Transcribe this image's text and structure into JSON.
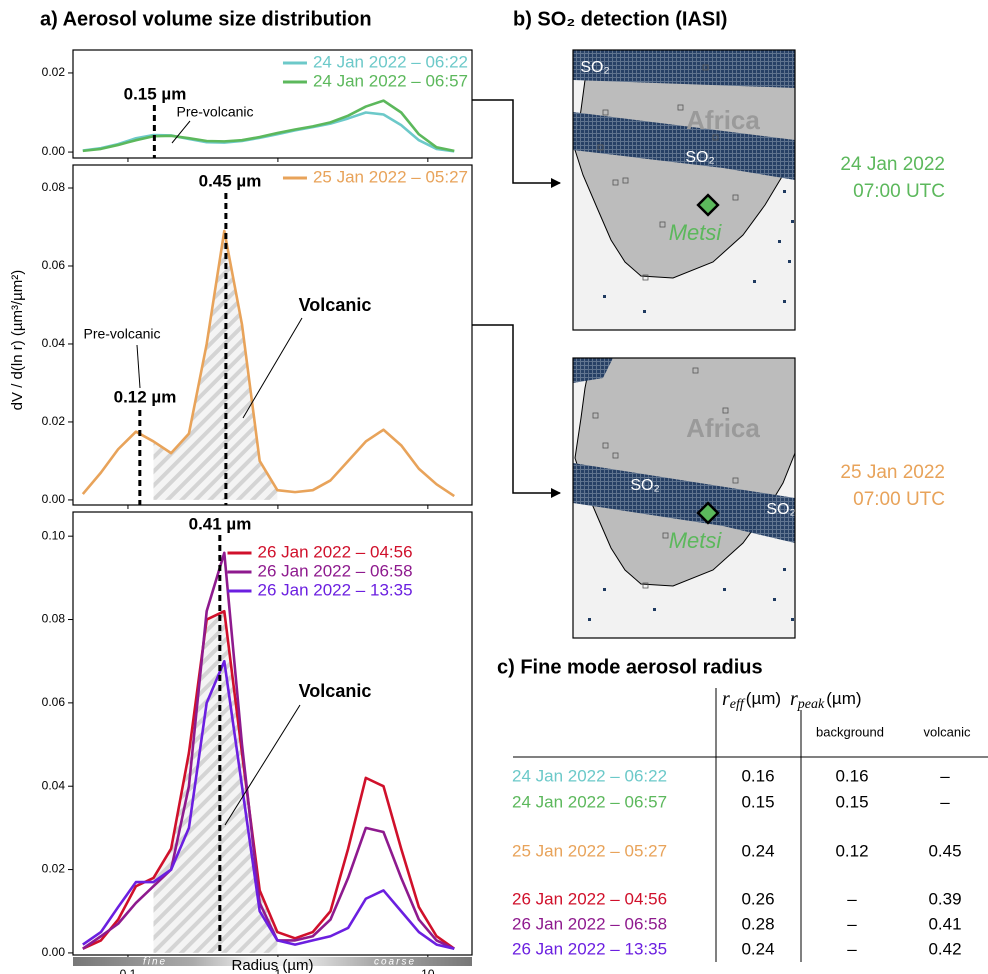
{
  "chart_data": [
    {
      "type": "line",
      "title": "a) Aerosol volume size distribution",
      "x": [
        0.05,
        0.066,
        0.086,
        0.113,
        0.148,
        0.194,
        0.255,
        0.335,
        0.439,
        0.576,
        0.756,
        0.992,
        1.302,
        1.708,
        2.241,
        2.94,
        3.857,
        5.061,
        6.641,
        8.713,
        11.432,
        15
      ],
      "log_x": true,
      "xlim": [
        0.043,
        19.7
      ],
      "xticks": [
        0.1,
        1,
        10
      ],
      "ylim": [
        -0.0015,
        0.0258
      ],
      "yticks": [
        {
          "value": 0,
          "label": "0.00"
        },
        {
          "value": 0.02,
          "label": "0.02"
        }
      ],
      "legend": "upper right",
      "series": [
        {
          "name": "24 Jan 2022 – 06:22",
          "color": "#6cc9c9",
          "values": [
            0.0004,
            0.001,
            0.002,
            0.0035,
            0.0043,
            0.0042,
            0.0033,
            0.0025,
            0.0024,
            0.0028,
            0.0036,
            0.0045,
            0.0055,
            0.0063,
            0.0072,
            0.0085,
            0.01,
            0.0095,
            0.0068,
            0.003,
            0.0008,
            0.0002
          ]
        },
        {
          "name": "24 Jan 2022 – 06:57",
          "color": "#5cb85c",
          "values": [
            0.0003,
            0.0008,
            0.0018,
            0.003,
            0.004,
            0.0041,
            0.0035,
            0.0028,
            0.0027,
            0.003,
            0.0038,
            0.0048,
            0.0057,
            0.0065,
            0.0075,
            0.0092,
            0.0115,
            0.013,
            0.01,
            0.0045,
            0.0012,
            0.0003
          ]
        }
      ],
      "vlines": [
        {
          "value": 0.15,
          "label": "0.15 µm"
        }
      ],
      "annotations": [
        "Pre-volcanic"
      ]
    },
    {
      "type": "line",
      "y_label": "dV / d(ln r) (µm³/µm²)",
      "x": [
        0.05,
        0.066,
        0.086,
        0.113,
        0.148,
        0.194,
        0.255,
        0.335,
        0.439,
        0.576,
        0.756,
        0.992,
        1.302,
        1.708,
        2.241,
        2.94,
        3.857,
        5.061,
        6.641,
        8.713,
        11.432,
        15
      ],
      "log_x": true,
      "xlim": [
        0.043,
        19.7
      ],
      "xticks": [
        0.1,
        1,
        10
      ],
      "ylim": [
        -0.0013,
        0.0859
      ],
      "yticks": [
        {
          "value": 0,
          "label": "0.00"
        },
        {
          "value": 0.02,
          "label": "0.02"
        },
        {
          "value": 0.04,
          "label": "0.04"
        },
        {
          "value": 0.06,
          "label": "0.06"
        },
        {
          "value": 0.08,
          "label": "0.08"
        }
      ],
      "legend": "upper right",
      "series": [
        {
          "name": "25 Jan 2022 – 05:27",
          "color": "#e8a35a",
          "values": [
            0.0015,
            0.007,
            0.013,
            0.0175,
            0.015,
            0.012,
            0.017,
            0.04,
            0.069,
            0.045,
            0.01,
            0.0025,
            0.002,
            0.0025,
            0.005,
            0.01,
            0.015,
            0.018,
            0.014,
            0.008,
            0.004,
            0.001
          ]
        }
      ],
      "vlines": [
        {
          "value": 0.45,
          "label": "0.45 µm"
        },
        {
          "value": 0.12,
          "label": "0.12 µm"
        }
      ],
      "annotations": [
        "Pre-volcanic",
        "Volcanic"
      ]
    },
    {
      "type": "line",
      "x_label": "Radius (µm)",
      "x_regions": [
        "fine",
        "coarse"
      ],
      "x": [
        0.05,
        0.066,
        0.086,
        0.113,
        0.148,
        0.194,
        0.255,
        0.335,
        0.439,
        0.576,
        0.756,
        0.992,
        1.302,
        1.708,
        2.241,
        2.94,
        3.857,
        5.061,
        6.641,
        8.713,
        11.432,
        15
      ],
      "log_x": true,
      "xlim": [
        0.043,
        19.7
      ],
      "xticks": [
        0.1,
        1,
        10
      ],
      "ylim": [
        -0.0005,
        0.1058
      ],
      "yticks": [
        {
          "value": 0,
          "label": "0.00"
        },
        {
          "value": 0.02,
          "label": "0.02"
        },
        {
          "value": 0.04,
          "label": "0.04"
        },
        {
          "value": 0.06,
          "label": "0.06"
        },
        {
          "value": 0.08,
          "label": "0.08"
        },
        {
          "value": 0.1,
          "label": "0.10"
        }
      ],
      "legend": "upper center",
      "series": [
        {
          "name": "26 Jan 2022 – 04:56",
          "color": "#d0102b",
          "values": [
            0.001,
            0.003,
            0.008,
            0.016,
            0.018,
            0.025,
            0.048,
            0.08,
            0.082,
            0.048,
            0.015,
            0.005,
            0.0035,
            0.005,
            0.01,
            0.025,
            0.042,
            0.04,
            0.025,
            0.011,
            0.004,
            0.001
          ]
        },
        {
          "name": "26 Jan 2022 – 06:58",
          "color": "#8e1a8e",
          "values": [
            0.001,
            0.004,
            0.007,
            0.012,
            0.016,
            0.02,
            0.04,
            0.082,
            0.096,
            0.05,
            0.012,
            0.003,
            0.003,
            0.004,
            0.008,
            0.018,
            0.03,
            0.029,
            0.018,
            0.008,
            0.003,
            0.001
          ]
        },
        {
          "name": "26 Jan 2022 – 13:35",
          "color": "#6b1fe0",
          "values": [
            0.002,
            0.005,
            0.011,
            0.017,
            0.017,
            0.02,
            0.03,
            0.06,
            0.07,
            0.04,
            0.01,
            0.003,
            0.002,
            0.003,
            0.004,
            0.006,
            0.013,
            0.015,
            0.01,
            0.005,
            0.002,
            0.001
          ]
        }
      ],
      "vlines": [
        {
          "value": 0.41,
          "label": "0.41 µm"
        }
      ],
      "annotations": [
        "Volcanic"
      ]
    }
  ],
  "maps": {
    "title": "b) SO₂ detection (IASI)",
    "site_color": "#5cb85c",
    "panels": [
      {
        "date": "24 Jan 2022",
        "time": "07:00 UTC",
        "color": "#5cb85c",
        "region": "Africa",
        "site": "Metsi",
        "plume_labels": [
          "SO₂",
          "SO₂"
        ]
      },
      {
        "date": "25 Jan 2022",
        "time": "07:00 UTC",
        "color": "#e8a35a",
        "region": "Africa",
        "site": "Metsi",
        "plume_labels": [
          "SO₂",
          "SO₂"
        ]
      }
    ]
  },
  "table": {
    "title": "c) Fine mode aerosol radius",
    "columns": [
      {
        "symbol": "r",
        "sub": "eff",
        "unit": "(µm)"
      },
      {
        "symbol": "r",
        "sub": "peak",
        "unit": "(µm)"
      }
    ],
    "subcolumns": [
      "background",
      "volcanic"
    ],
    "rows": [
      {
        "label": "24 Jan 2022 – 06:22",
        "color": "#6cc9c9",
        "cells": [
          "0.16",
          "0.16",
          "–"
        ]
      },
      {
        "label": "24 Jan 2022 – 06:57",
        "color": "#5cb85c",
        "cells": [
          "0.15",
          "0.15",
          "–"
        ]
      },
      {
        "label": "25 Jan 2022 – 05:27",
        "color": "#e8a35a",
        "cells": [
          "0.24",
          "0.12",
          "0.45"
        ]
      },
      {
        "label": "26 Jan 2022 – 04:56",
        "color": "#d0102b",
        "cells": [
          "0.26",
          "–",
          "0.39"
        ]
      },
      {
        "label": "26 Jan 2022 – 06:58",
        "color": "#8e1a8e",
        "cells": [
          "0.28",
          "–",
          "0.41"
        ]
      },
      {
        "label": "26 Jan 2022 – 13:35",
        "color": "#6b1fe0",
        "cells": [
          "0.24",
          "–",
          "0.42"
        ]
      }
    ]
  }
}
